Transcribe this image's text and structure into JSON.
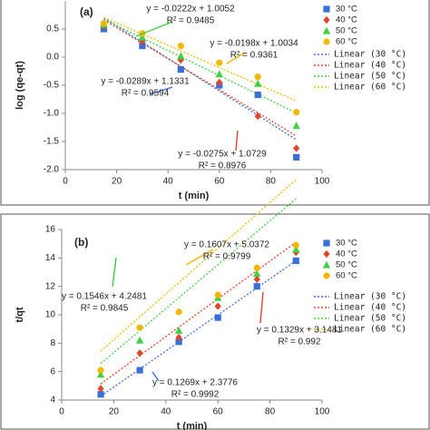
{
  "chart_data": [
    {
      "type": "scatter",
      "label": "(a)",
      "xlabel": "t (min)",
      "ylabel": "log (qe-qt)",
      "xlim": [
        0,
        100
      ],
      "xticks": [
        0,
        20,
        40,
        60,
        80,
        100
      ],
      "ylim": [
        -2,
        1
      ],
      "yticks": [
        {
          "value": -2,
          "label": "-2.0"
        },
        -1.5,
        {
          "value": -1,
          "label": "-1.0"
        },
        -0.5,
        {
          "value": 0,
          "label": "0.0"
        },
        0.5
      ],
      "x": [
        15,
        30,
        45,
        60,
        75,
        90
      ],
      "series": [
        {
          "name": "30 °C",
          "color": "#3a6fd8",
          "marker": "square",
          "values": [
            0.5,
            0.2,
            -0.22,
            -0.5,
            -0.67,
            -1.78
          ]
        },
        {
          "name": "40 °C",
          "color": "#e0442b",
          "marker": "diamond",
          "values": [
            0.55,
            0.28,
            -0.05,
            -0.45,
            -1.05,
            -1.62
          ]
        },
        {
          "name": "50 °C",
          "color": "#44d044",
          "marker": "triangle",
          "values": [
            0.58,
            0.35,
            0.02,
            -0.3,
            -0.47,
            -1.22
          ]
        },
        {
          "name": "60 °C",
          "color": "#f2b800",
          "marker": "circle",
          "values": [
            0.6,
            0.42,
            0.2,
            -0.1,
            -0.35,
            -0.98
          ]
        }
      ],
      "trendlines": [
        {
          "name": "Linear (30 °C)",
          "color": "#3a6fd8",
          "slope": -0.0289,
          "intercept": 1.1331
        },
        {
          "name": "Linear (40 °C)",
          "color": "#e0442b",
          "slope": -0.0275,
          "intercept": 1.0729
        },
        {
          "name": "Linear (50 °C)",
          "color": "#44d044",
          "slope": -0.0222,
          "intercept": 1.0052
        },
        {
          "name": "Linear (60 °C)",
          "color": "#f2b800",
          "slope": -0.0198,
          "intercept": 1.0034
        }
      ],
      "annotations": [
        {
          "equation": "y = -0.0289x + 1.1331",
          "r2": "R² = 0.9594"
        },
        {
          "equation": "y = -0.0275x + 1.0729",
          "r2": "R² = 0.8976"
        },
        {
          "equation": "y = -0.0222x + 1.0052",
          "r2": "R² = 0.9485"
        },
        {
          "equation": "y = -0.0198x + 1.0034",
          "r2": "R² = 0.9361"
        }
      ]
    },
    {
      "type": "scatter",
      "label": "(b)",
      "xlabel": "t (min)",
      "ylabel": "t/qt",
      "xlim": [
        0,
        100
      ],
      "xticks": [
        0,
        20,
        40,
        60,
        80,
        100
      ],
      "ylim": [
        4,
        16
      ],
      "yticks": [
        4,
        6,
        8,
        10,
        12,
        14,
        16
      ],
      "x": [
        15,
        30,
        45,
        60,
        75,
        90
      ],
      "series": [
        {
          "name": "30 °C",
          "color": "#3a6fd8",
          "marker": "square",
          "values": [
            4.4,
            6.1,
            8.1,
            9.8,
            12.0,
            13.8
          ]
        },
        {
          "name": "40 °C",
          "color": "#e0442b",
          "marker": "diamond",
          "values": [
            4.8,
            7.3,
            8.4,
            10.6,
            12.5,
            14.4
          ]
        },
        {
          "name": "50 °C",
          "color": "#44d044",
          "marker": "triangle",
          "values": [
            5.8,
            8.2,
            8.9,
            11.2,
            12.9,
            14.6
          ]
        },
        {
          "name": "60 °C",
          "color": "#f2b800",
          "marker": "circle",
          "values": [
            6.1,
            9.1,
            10.2,
            11.4,
            13.3,
            14.9
          ]
        }
      ],
      "trendlines": [
        {
          "name": "Linear (30 °C)",
          "color": "#3a6fd8",
          "slope": 0.1269,
          "intercept": 2.3776
        },
        {
          "name": "Linear (40 °C)",
          "color": "#e0442b",
          "slope": 0.1329,
          "intercept": 3.1481
        },
        {
          "name": "Linear (50 °C)",
          "color": "#44d044",
          "slope": 0.1546,
          "intercept": 4.2481
        },
        {
          "name": "Linear (60 °C)",
          "color": "#f2b800",
          "slope": 0.1607,
          "intercept": 5.0372
        }
      ],
      "annotations": [
        {
          "equation": "y = 0.1269x + 2.3776",
          "r2": "R² = 0.9992"
        },
        {
          "equation": "y = 0.1329x + 3.1481",
          "r2": "R² = 0.992"
        },
        {
          "equation": "y = 0.1546x + 4.2481",
          "r2": "R² = 0.9845"
        },
        {
          "equation": "y = 0.1607x + 5.0372",
          "r2": "R² = 0.9799"
        }
      ]
    }
  ]
}
